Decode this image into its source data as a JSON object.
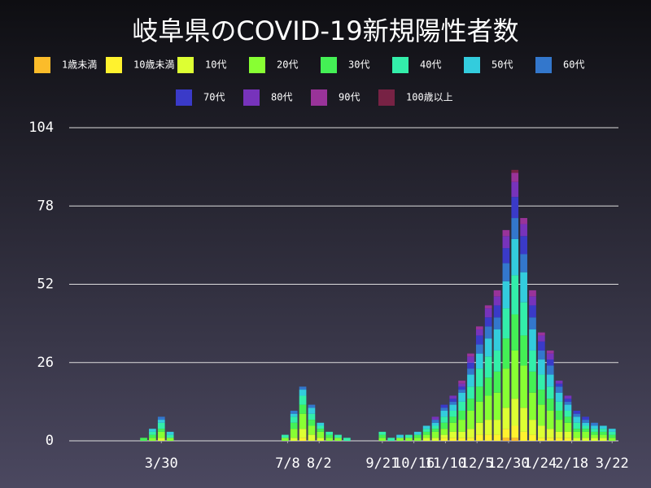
{
  "chart_data": {
    "type": "stacked_bar",
    "title": "岐阜県のCOVID-19新規陽性者数",
    "x": [
      -14,
      -7,
      0,
      7,
      98,
      105,
      112,
      119,
      126,
      133,
      140,
      147,
      175,
      182,
      189,
      196,
      203,
      210,
      217,
      224,
      231,
      238,
      245,
      252,
      259,
      266,
      273,
      280,
      287,
      294,
      301,
      308,
      315,
      322,
      329,
      336,
      343,
      350,
      357
    ],
    "xlim": [
      -73,
      362
    ],
    "xticks": [
      {
        "value": 0,
        "label": "3/30"
      },
      {
        "value": 100,
        "label": "7/8"
      },
      {
        "value": 125,
        "label": "8/2"
      },
      {
        "value": 175,
        "label": "9/21"
      },
      {
        "value": 200,
        "label": "10/16"
      },
      {
        "value": 225,
        "label": "11/10"
      },
      {
        "value": 250,
        "label": "12/5"
      },
      {
        "value": 275,
        "label": "12/30"
      },
      {
        "value": 300,
        "label": "1/24"
      },
      {
        "value": 325,
        "label": "2/18"
      },
      {
        "value": 357,
        "label": "3/22"
      }
    ],
    "ylim": [
      0,
      104
    ],
    "yticks": [
      0,
      26,
      52,
      78,
      104
    ],
    "grid": true,
    "series": [
      {
        "name": "1歳未満",
        "color": "#fbbc2a",
        "values": [
          0,
          0,
          0,
          0,
          0,
          0,
          0,
          0,
          0,
          0,
          0,
          0,
          0,
          0,
          0,
          0,
          0,
          0,
          0,
          0,
          0,
          0,
          0,
          0,
          0,
          0,
          1,
          1,
          0,
          0,
          0,
          0,
          0,
          0,
          0,
          0,
          0,
          0,
          0
        ]
      },
      {
        "name": "10歳未満",
        "color": "#fff22e",
        "values": [
          0,
          0,
          0,
          0,
          0,
          0,
          1,
          0,
          0,
          0,
          0,
          0,
          0,
          0,
          0,
          0,
          0,
          0,
          0,
          1,
          1,
          1,
          1,
          2,
          2,
          2,
          3,
          4,
          3,
          2,
          1,
          1,
          1,
          1,
          0,
          0,
          0,
          0,
          0
        ]
      },
      {
        "name": "10代",
        "color": "#ddff33",
        "values": [
          0,
          0,
          1,
          0,
          0,
          1,
          3,
          2,
          1,
          0,
          0,
          0,
          0,
          0,
          0,
          0,
          0,
          1,
          1,
          1,
          2,
          2,
          3,
          4,
          5,
          5,
          7,
          9,
          8,
          5,
          4,
          3,
          2,
          2,
          1,
          1,
          1,
          1,
          0
        ]
      },
      {
        "name": "20代",
        "color": "#88ff33",
        "values": [
          0,
          1,
          2,
          1,
          1,
          3,
          5,
          3,
          2,
          1,
          1,
          0,
          1,
          0,
          1,
          1,
          1,
          1,
          2,
          2,
          3,
          4,
          6,
          7,
          8,
          9,
          13,
          16,
          14,
          9,
          7,
          6,
          4,
          3,
          2,
          2,
          1,
          1,
          1
        ]
      },
      {
        "name": "30代",
        "color": "#44f055",
        "values": [
          1,
          1,
          1,
          0,
          0,
          2,
          3,
          2,
          1,
          1,
          0,
          0,
          1,
          0,
          0,
          0,
          1,
          1,
          1,
          2,
          2,
          3,
          4,
          5,
          6,
          7,
          10,
          12,
          10,
          7,
          5,
          4,
          3,
          2,
          1,
          1,
          1,
          1,
          1
        ]
      },
      {
        "name": "40代",
        "color": "#33eeaa",
        "values": [
          0,
          1,
          2,
          1,
          1,
          2,
          3,
          2,
          1,
          1,
          1,
          1,
          1,
          1,
          0,
          1,
          0,
          1,
          1,
          2,
          2,
          3,
          4,
          6,
          7,
          7,
          10,
          13,
          11,
          7,
          5,
          4,
          3,
          2,
          2,
          1,
          1,
          1,
          1
        ]
      },
      {
        "name": "50代",
        "color": "#33ccdd",
        "values": [
          0,
          1,
          1,
          1,
          0,
          1,
          2,
          2,
          1,
          0,
          0,
          0,
          0,
          0,
          1,
          0,
          1,
          1,
          1,
          2,
          2,
          3,
          4,
          5,
          6,
          7,
          9,
          12,
          10,
          7,
          5,
          4,
          3,
          2,
          2,
          1,
          1,
          1,
          1
        ]
      },
      {
        "name": "60代",
        "color": "#3377cc",
        "values": [
          0,
          0,
          1,
          0,
          0,
          1,
          1,
          1,
          0,
          0,
          0,
          0,
          0,
          0,
          0,
          0,
          0,
          0,
          1,
          1,
          1,
          1,
          2,
          3,
          4,
          4,
          6,
          7,
          6,
          4,
          3,
          3,
          2,
          1,
          1,
          1,
          1,
          0,
          0
        ]
      },
      {
        "name": "70代",
        "color": "#3a3ac8",
        "values": [
          0,
          0,
          0,
          0,
          0,
          0,
          0,
          0,
          0,
          0,
          0,
          0,
          0,
          0,
          0,
          0,
          0,
          0,
          0,
          1,
          1,
          1,
          2,
          3,
          3,
          4,
          5,
          7,
          6,
          4,
          3,
          2,
          1,
          1,
          1,
          1,
          0,
          0,
          0
        ]
      },
      {
        "name": "80代",
        "color": "#7733bb",
        "values": [
          0,
          0,
          0,
          0,
          0,
          0,
          0,
          0,
          0,
          0,
          0,
          0,
          0,
          0,
          0,
          0,
          0,
          0,
          1,
          0,
          1,
          1,
          2,
          2,
          3,
          3,
          4,
          5,
          4,
          3,
          2,
          2,
          1,
          1,
          0,
          0,
          0,
          0,
          0
        ]
      },
      {
        "name": "90代",
        "color": "#993399",
        "values": [
          0,
          0,
          0,
          0,
          0,
          0,
          0,
          0,
          0,
          0,
          0,
          0,
          0,
          0,
          0,
          0,
          0,
          0,
          0,
          0,
          0,
          1,
          1,
          1,
          1,
          2,
          2,
          3,
          2,
          2,
          1,
          1,
          0,
          0,
          0,
          0,
          0,
          0,
          0
        ]
      },
      {
        "name": "100歳以上",
        "color": "#772244",
        "values": [
          0,
          0,
          0,
          0,
          0,
          0,
          0,
          0,
          0,
          0,
          0,
          0,
          0,
          0,
          0,
          0,
          0,
          0,
          0,
          0,
          0,
          0,
          0,
          0,
          0,
          0,
          0,
          1,
          0,
          0,
          0,
          0,
          0,
          0,
          0,
          0,
          0,
          0,
          0
        ]
      }
    ]
  }
}
